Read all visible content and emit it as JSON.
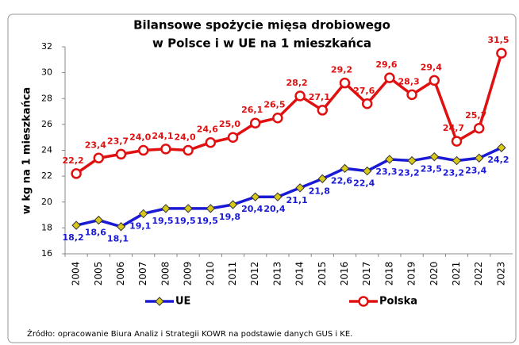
{
  "chart_data": {
    "type": "line",
    "title": [
      "Bilansowe spożycie mięsa drobiowego",
      "w Polsce i w UE na 1 mieszkańca"
    ],
    "ylabel": "w kg na 1 mieszkańca",
    "categories": [
      "2004",
      "2005",
      "2006",
      "2007",
      "2008",
      "2009",
      "2010",
      "2011",
      "2012",
      "2013",
      "2014",
      "2015",
      "2016",
      "2017",
      "2018",
      "2019",
      "2020",
      "2021",
      "2022",
      "2023"
    ],
    "ylim": [
      16,
      32
    ],
    "yticks": [
      16,
      18,
      20,
      22,
      24,
      26,
      28,
      30,
      32
    ],
    "grid": false,
    "legend": "bottom",
    "series": [
      {
        "name": "UE",
        "color": "#1a1ad6",
        "marker": "diamond",
        "marker_color": "#d8c81a",
        "label_position": "below",
        "values": [
          18.2,
          18.6,
          18.1,
          19.1,
          19.5,
          19.5,
          19.5,
          19.8,
          20.4,
          20.4,
          21.1,
          21.8,
          22.6,
          22.4,
          23.3,
          23.2,
          23.5,
          23.2,
          23.4,
          24.2
        ],
        "value_labels": [
          "18,2",
          "18,6",
          "18,1",
          "19,1",
          "19,5",
          "19,5",
          "19,5",
          "19,8",
          "20,4",
          "20,4",
          "21,1",
          "21,8",
          "22,6",
          "22,4",
          "23,3",
          "23,2",
          "23,5",
          "23,2",
          "23,4",
          "24,2"
        ]
      },
      {
        "name": "Polska",
        "color": "#e01010",
        "marker": "circle",
        "marker_color": "#ffffff",
        "label_position": "above",
        "values": [
          22.2,
          23.4,
          23.7,
          24.0,
          24.1,
          24.0,
          24.6,
          25.0,
          26.1,
          26.5,
          28.2,
          27.1,
          29.2,
          27.6,
          29.6,
          28.3,
          29.4,
          24.7,
          25.7,
          31.5
        ],
        "value_labels": [
          "22,2",
          "23,4",
          "23,7",
          "24,0",
          "24,1",
          "24,0",
          "24,6",
          "25,0",
          "26,1",
          "26,5",
          "28,2",
          "27,1",
          "29,2",
          "27,6",
          "29,6",
          "28,3",
          "29,4",
          "24,7",
          "25,7",
          "31,5"
        ]
      }
    ],
    "source": "Źródło: opracowanie Biura Analiz i Strategii KOWR na podstawie danych GUS i KE."
  }
}
